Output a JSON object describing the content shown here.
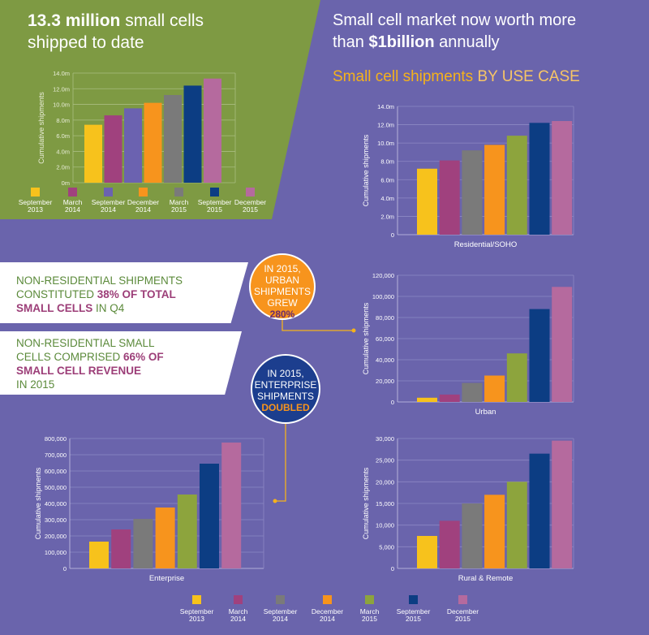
{
  "colors": [
    "#f7c21c",
    "#a0417e",
    "#7a7a7a",
    "#f7941d",
    "#8da43d",
    "#0c3d83",
    "#b56a9e"
  ],
  "top_left": {
    "headline_bold": "13.3 million",
    "headline_rest": " small cells",
    "headline_line2": "shipped to date",
    "bar_colors": [
      "#f7c21c",
      "#a0417e",
      "#6b62b0",
      "#f7941d",
      "#7a7a7a",
      "#0c3d83",
      "#b56a9e"
    ],
    "legend": [
      "September\n2013",
      "March\n2014",
      "September\n2014",
      "December\n2014",
      "March\n2015",
      "September\n2015",
      "December\n2015"
    ]
  },
  "top_right": {
    "line1": "Small cell market now worth more",
    "line2_pre": "than ",
    "line2_bold": "$1billion",
    "line2_post": " annually",
    "subtitle_a": "Small cell shipments ",
    "subtitle_b": "BY USE CASE"
  },
  "callouts": {
    "c1_line1": "NON-RESIDENTIAL SHIPMENTS",
    "c1_line2_pre": "CONSTITUTED ",
    "c1_line2_em": "38% OF TOTAL",
    "c1_line3_em": "SMALL CELLS",
    "c1_line3_post": " IN Q4",
    "c2_line1": "NON-RESIDENTIAL SMALL",
    "c2_line2_pre": "CELLS COMPRISED ",
    "c2_line2_em": "66% OF",
    "c2_line3_em": "SMALL CELL REVENUE",
    "c2_line4": "IN 2015"
  },
  "bubbles": {
    "urban": [
      "IN 2015,",
      "URBAN",
      "SHIPMENTS",
      "GREW",
      "280%"
    ],
    "enterprise": [
      "IN 2015,",
      "ENTERPRISE",
      "SHIPMENTS",
      "DOUBLED"
    ]
  },
  "bottom_legend": [
    "September\n2013",
    "March\n2014",
    "September\n2014",
    "December\n2014",
    "March\n2015",
    "September\n2015",
    "December\n2015"
  ],
  "chart_data": [
    {
      "id": "total",
      "type": "bar",
      "title": "",
      "xlabel": "",
      "ylabel": "Cumulative shipments",
      "categories": [
        "September 2013",
        "March 2014",
        "September 2014",
        "December 2014",
        "March 2015",
        "September 2015",
        "December 2015"
      ],
      "values": [
        7.4,
        8.6,
        9.5,
        10.2,
        11.2,
        12.4,
        13.3
      ],
      "ylim": [
        0,
        14
      ],
      "yticks": [
        0,
        2,
        4,
        6,
        8,
        10,
        12,
        14
      ],
      "yticklabels": [
        "0m",
        "2.0m",
        "4.0m",
        "6.0m",
        "8.0m",
        "10.0m",
        "12.0m",
        "14.0m"
      ],
      "grid": true
    },
    {
      "id": "residential",
      "type": "bar",
      "title": "",
      "xlabel": "Residential/SOHO",
      "ylabel": "Cumulative shipments",
      "categories": [
        "September 2013",
        "March 2014",
        "September 2014",
        "December 2014",
        "March 2015",
        "September 2015",
        "December 2015"
      ],
      "values": [
        7.2,
        8.1,
        9.2,
        9.8,
        10.8,
        12.2,
        12.4
      ],
      "ylim": [
        0,
        14
      ],
      "yticks": [
        0,
        2,
        4,
        6,
        8,
        10,
        12,
        14
      ],
      "yticklabels": [
        "0",
        "2.0m",
        "4.0m",
        "6.0m",
        "8.0m",
        "10.0m",
        "12.0m",
        "14.0m"
      ],
      "grid": true
    },
    {
      "id": "urban",
      "type": "bar",
      "title": "",
      "xlabel": "Urban",
      "ylabel": "Cumulative shipments",
      "categories": [
        "September 2013",
        "March 2014",
        "September 2014",
        "December 2014",
        "March 2015",
        "September 2015",
        "December 2015"
      ],
      "values": [
        4000,
        7000,
        18000,
        25000,
        46000,
        88000,
        109000
      ],
      "ylim": [
        0,
        120000
      ],
      "yticks": [
        0,
        20000,
        40000,
        60000,
        80000,
        100000,
        120000
      ],
      "yticklabels": [
        "0",
        "20,000",
        "40,000",
        "60,000",
        "80,000",
        "100,000",
        "120,000"
      ],
      "grid": true
    },
    {
      "id": "enterprise",
      "type": "bar",
      "title": "",
      "xlabel": "Enterprise",
      "ylabel": "Cumulative shipments",
      "categories": [
        "September 2013",
        "March 2014",
        "September 2014",
        "December 2014",
        "March 2015",
        "September 2015",
        "December 2015"
      ],
      "values": [
        165000,
        240000,
        305000,
        375000,
        455000,
        645000,
        775000
      ],
      "ylim": [
        0,
        800000
      ],
      "yticks": [
        0,
        100000,
        200000,
        300000,
        400000,
        500000,
        600000,
        700000,
        800000
      ],
      "yticklabels": [
        "0",
        "100,000",
        "200,000",
        "300,000",
        "400,000",
        "500,000",
        "600,000",
        "700,000",
        "800,000"
      ],
      "grid": true
    },
    {
      "id": "rural",
      "type": "bar",
      "title": "",
      "xlabel": "Rural & Remote",
      "ylabel": "Cumulative shipments",
      "categories": [
        "September 2013",
        "March 2014",
        "September 2014",
        "December 2014",
        "March 2015",
        "September 2015",
        "December 2015"
      ],
      "values": [
        7500,
        11000,
        15000,
        17000,
        20000,
        26500,
        29500
      ],
      "ylim": [
        0,
        30000
      ],
      "yticks": [
        0,
        5000,
        10000,
        15000,
        20000,
        25000,
        30000
      ],
      "yticklabels": [
        "0",
        "5,000",
        "10,000",
        "15,000",
        "20,000",
        "25,000",
        "30,000"
      ],
      "grid": true
    }
  ]
}
